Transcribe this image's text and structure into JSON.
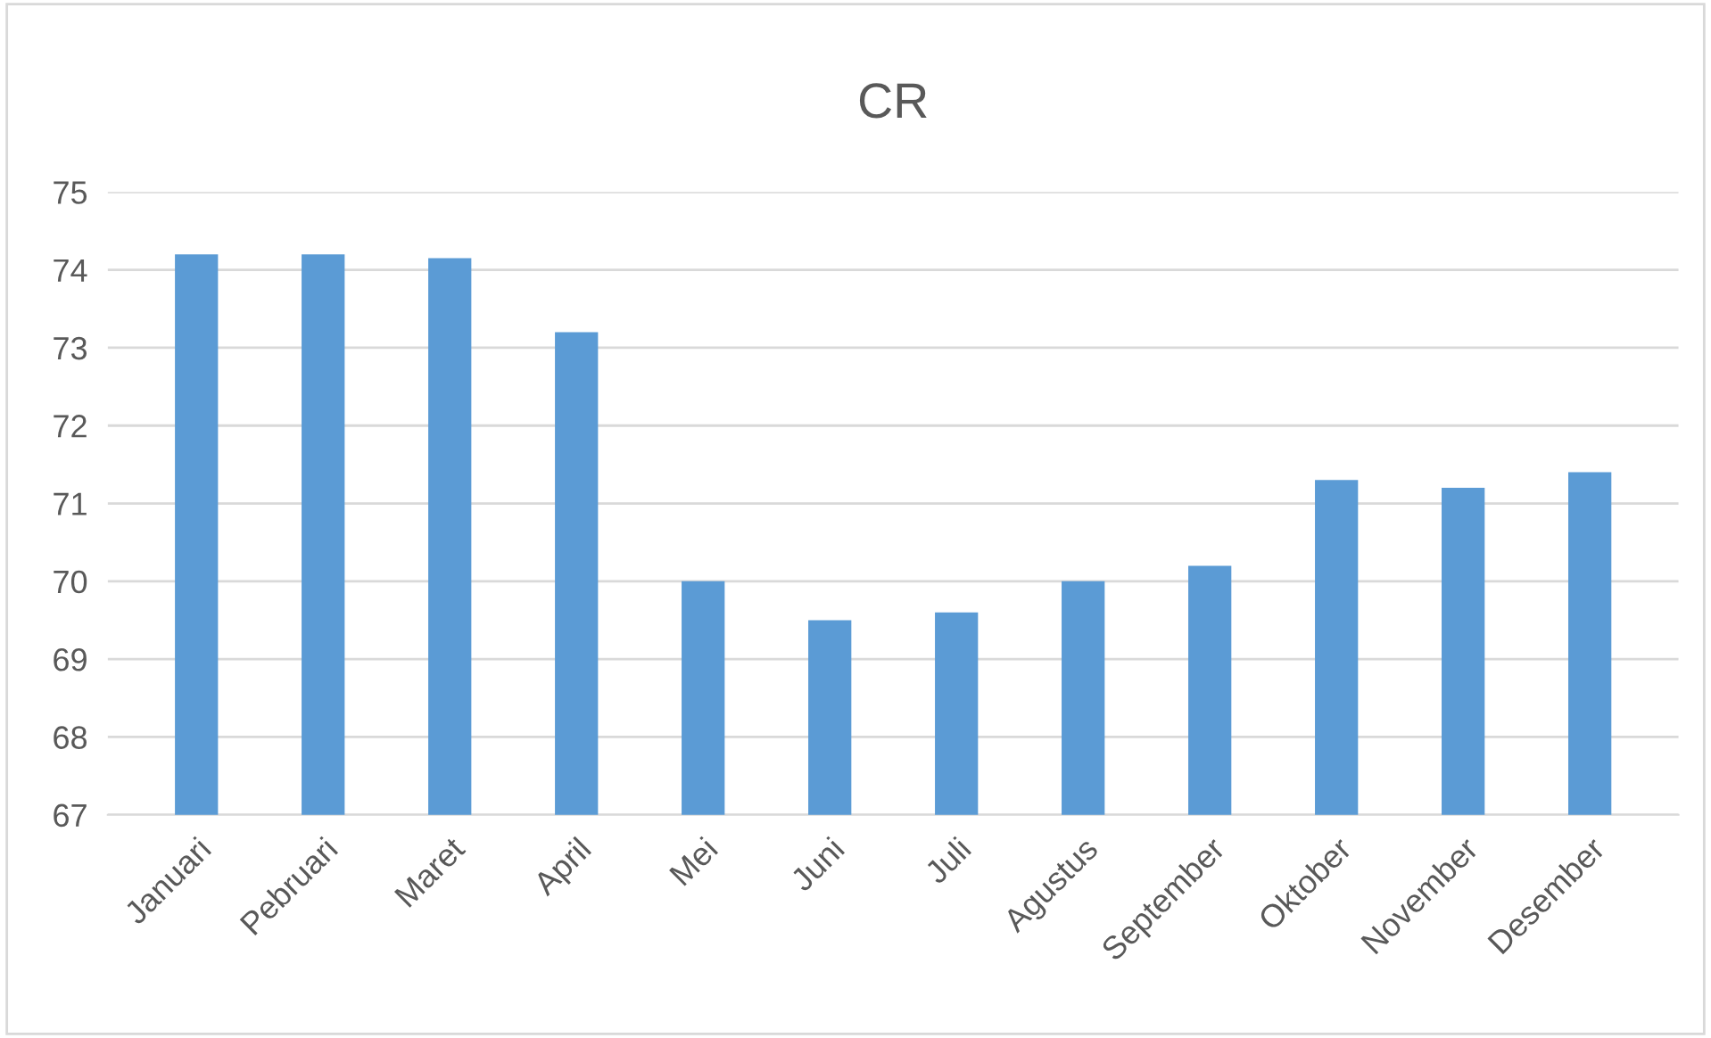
{
  "chart_data": {
    "type": "bar",
    "title": "CR",
    "categories": [
      "Januari",
      "Pebruari",
      "Maret",
      "April",
      "Mei",
      "Juni",
      "Juli",
      "Agustus",
      "September",
      "Oktober",
      "November",
      "Desember"
    ],
    "values": [
      74.2,
      74.2,
      74.15,
      73.2,
      70.0,
      69.5,
      69.6,
      70.0,
      70.2,
      71.3,
      71.2,
      71.4
    ],
    "color": "#5b9bd5",
    "ylim": [
      67,
      75
    ],
    "yticks": [
      67,
      68,
      69,
      70,
      71,
      72,
      73,
      74,
      75
    ],
    "grid": "y",
    "legend": false
  }
}
